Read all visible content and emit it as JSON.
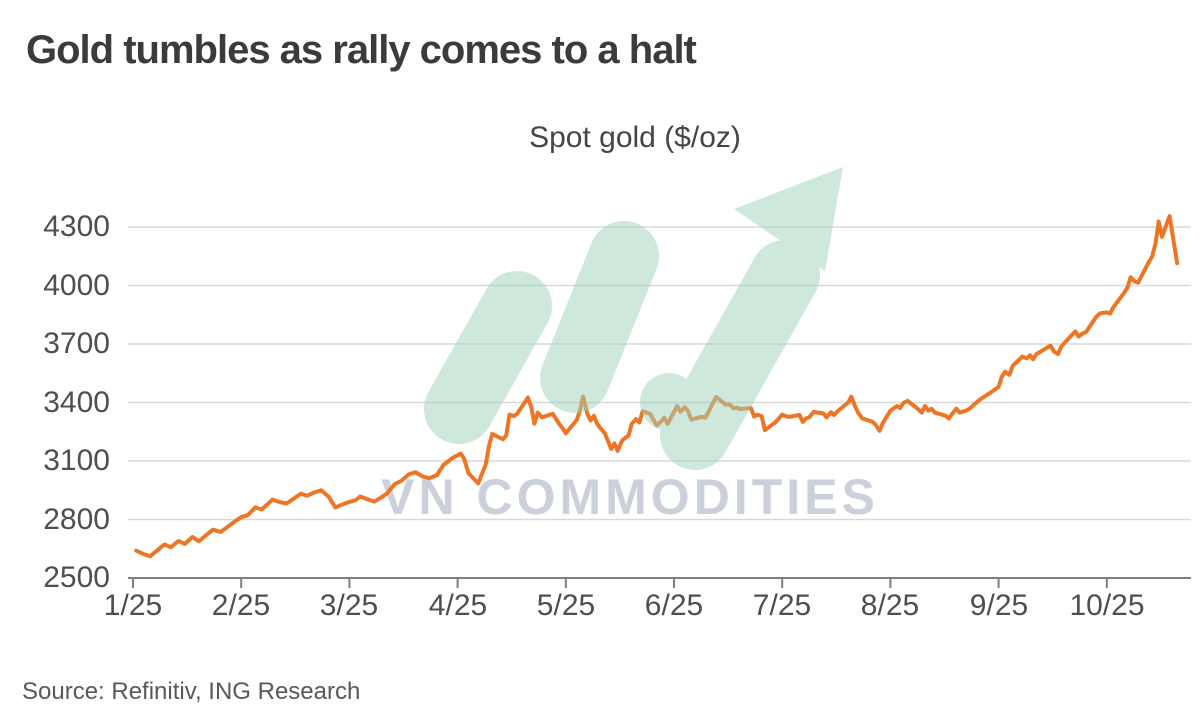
{
  "header": {
    "title": "Gold tumbles as rally comes to a halt"
  },
  "watermark": {
    "text": "VN COMMODITIES",
    "arrow_color": "#9fd4ba"
  },
  "footer": {
    "source": "Source: Refinitiv, ING Research"
  },
  "colors": {
    "line": "#ee7524",
    "grid": "#d9d9d9",
    "axis": "#7f7f7f",
    "axis_text": "#4f4f4f"
  },
  "chart_data": {
    "type": "line",
    "title": "Spot gold ($/oz)",
    "xlabel": "",
    "ylabel": "",
    "x_tick_labels": [
      "1/25",
      "2/25",
      "3/25",
      "4/25",
      "5/25",
      "6/25",
      "7/25",
      "8/25",
      "9/25",
      "10/25"
    ],
    "y_ticks": [
      2500,
      2800,
      3100,
      3400,
      3700,
      4000,
      4300
    ],
    "ylim": [
      2500,
      4460
    ],
    "xlim_months": [
      0,
      9.78
    ],
    "grid": "horizontal",
    "legend": "none",
    "series": [
      {
        "name": "Spot gold ($/oz)",
        "color": "#ee7524",
        "points": [
          [
            0.03,
            2640
          ],
          [
            0.1,
            2622
          ],
          [
            0.16,
            2612
          ],
          [
            0.22,
            2640
          ],
          [
            0.29,
            2672
          ],
          [
            0.35,
            2658
          ],
          [
            0.42,
            2690
          ],
          [
            0.48,
            2675
          ],
          [
            0.55,
            2710
          ],
          [
            0.61,
            2688
          ],
          [
            0.68,
            2722
          ],
          [
            0.74,
            2748
          ],
          [
            0.81,
            2736
          ],
          [
            0.87,
            2760
          ],
          [
            0.94,
            2790
          ],
          [
            1.0,
            2812
          ],
          [
            1.06,
            2822
          ],
          [
            1.13,
            2862
          ],
          [
            1.19,
            2852
          ],
          [
            1.29,
            2902
          ],
          [
            1.35,
            2890
          ],
          [
            1.42,
            2882
          ],
          [
            1.55,
            2932
          ],
          [
            1.61,
            2922
          ],
          [
            1.68,
            2940
          ],
          [
            1.74,
            2950
          ],
          [
            1.81,
            2916
          ],
          [
            1.87,
            2862
          ],
          [
            1.94,
            2878
          ],
          [
            2.0,
            2890
          ],
          [
            2.06,
            2900
          ],
          [
            2.1,
            2918
          ],
          [
            2.16,
            2905
          ],
          [
            2.23,
            2892
          ],
          [
            2.29,
            2912
          ],
          [
            2.35,
            2935
          ],
          [
            2.42,
            2982
          ],
          [
            2.48,
            2998
          ],
          [
            2.55,
            3032
          ],
          [
            2.61,
            3042
          ],
          [
            2.68,
            3020
          ],
          [
            2.74,
            3012
          ],
          [
            2.81,
            3028
          ],
          [
            2.87,
            3080
          ],
          [
            2.97,
            3122
          ],
          [
            3.0,
            3128
          ],
          [
            3.03,
            3138
          ],
          [
            3.06,
            3112
          ],
          [
            3.1,
            3038
          ],
          [
            3.19,
            2985
          ],
          [
            3.26,
            3082
          ],
          [
            3.29,
            3178
          ],
          [
            3.32,
            3238
          ],
          [
            3.42,
            3212
          ],
          [
            3.45,
            3232
          ],
          [
            3.48,
            3338
          ],
          [
            3.52,
            3330
          ],
          [
            3.55,
            3342
          ],
          [
            3.65,
            3425
          ],
          [
            3.68,
            3378
          ],
          [
            3.71,
            3292
          ],
          [
            3.74,
            3348
          ],
          [
            3.78,
            3324
          ],
          [
            3.88,
            3342
          ],
          [
            3.94,
            3290
          ],
          [
            3.97,
            3268
          ],
          [
            4.0,
            3242
          ],
          [
            4.03,
            3262
          ],
          [
            4.1,
            3310
          ],
          [
            4.13,
            3358
          ],
          [
            4.16,
            3430
          ],
          [
            4.2,
            3340
          ],
          [
            4.23,
            3308
          ],
          [
            4.26,
            3332
          ],
          [
            4.29,
            3290
          ],
          [
            4.32,
            3268
          ],
          [
            4.36,
            3242
          ],
          [
            4.42,
            3162
          ],
          [
            4.45,
            3190
          ],
          [
            4.48,
            3152
          ],
          [
            4.52,
            3205
          ],
          [
            4.58,
            3232
          ],
          [
            4.61,
            3292
          ],
          [
            4.65,
            3315
          ],
          [
            4.68,
            3298
          ],
          [
            4.71,
            3355
          ],
          [
            4.78,
            3342
          ],
          [
            4.84,
            3282
          ],
          [
            4.88,
            3302
          ],
          [
            4.91,
            3322
          ],
          [
            4.94,
            3290
          ],
          [
            5.03,
            3382
          ],
          [
            5.06,
            3352
          ],
          [
            5.1,
            3376
          ],
          [
            5.13,
            3355
          ],
          [
            5.16,
            3312
          ],
          [
            5.25,
            3326
          ],
          [
            5.29,
            3322
          ],
          [
            5.32,
            3352
          ],
          [
            5.35,
            3388
          ],
          [
            5.39,
            3428
          ],
          [
            5.48,
            3388
          ],
          [
            5.51,
            3392
          ],
          [
            5.55,
            3370
          ],
          [
            5.58,
            3374
          ],
          [
            5.61,
            3366
          ],
          [
            5.71,
            3372
          ],
          [
            5.74,
            3328
          ],
          [
            5.77,
            3338
          ],
          [
            5.81,
            3330
          ],
          [
            5.84,
            3258
          ],
          [
            5.94,
            3300
          ],
          [
            6.0,
            3338
          ],
          [
            6.03,
            3330
          ],
          [
            6.06,
            3326
          ],
          [
            6.16,
            3336
          ],
          [
            6.19,
            3300
          ],
          [
            6.22,
            3318
          ],
          [
            6.25,
            3324
          ],
          [
            6.29,
            3352
          ],
          [
            6.38,
            3344
          ],
          [
            6.41,
            3324
          ],
          [
            6.45,
            3350
          ],
          [
            6.48,
            3336
          ],
          [
            6.51,
            3355
          ],
          [
            6.61,
            3400
          ],
          [
            6.64,
            3430
          ],
          [
            6.67,
            3385
          ],
          [
            6.7,
            3350
          ],
          [
            6.74,
            3318
          ],
          [
            6.83,
            3302
          ],
          [
            6.86,
            3288
          ],
          [
            6.9,
            3255
          ],
          [
            6.93,
            3295
          ],
          [
            7.0,
            3358
          ],
          [
            7.06,
            3382
          ],
          [
            7.09,
            3372
          ],
          [
            7.12,
            3398
          ],
          [
            7.16,
            3408
          ],
          [
            7.25,
            3368
          ],
          [
            7.29,
            3348
          ],
          [
            7.32,
            3382
          ],
          [
            7.35,
            3358
          ],
          [
            7.38,
            3368
          ],
          [
            7.41,
            3348
          ],
          [
            7.51,
            3332
          ],
          [
            7.54,
            3318
          ],
          [
            7.58,
            3348
          ],
          [
            7.61,
            3368
          ],
          [
            7.64,
            3348
          ],
          [
            7.7,
            3358
          ],
          [
            7.74,
            3372
          ],
          [
            7.77,
            3388
          ],
          [
            7.8,
            3402
          ],
          [
            7.84,
            3420
          ],
          [
            7.92,
            3448
          ],
          [
            8.0,
            3480
          ],
          [
            8.03,
            3532
          ],
          [
            8.06,
            3558
          ],
          [
            8.1,
            3542
          ],
          [
            8.13,
            3588
          ],
          [
            8.22,
            3636
          ],
          [
            8.26,
            3626
          ],
          [
            8.29,
            3642
          ],
          [
            8.32,
            3622
          ],
          [
            8.35,
            3648
          ],
          [
            8.45,
            3682
          ],
          [
            8.48,
            3692
          ],
          [
            8.51,
            3662
          ],
          [
            8.55,
            3648
          ],
          [
            8.58,
            3688
          ],
          [
            8.68,
            3748
          ],
          [
            8.71,
            3764
          ],
          [
            8.74,
            3738
          ],
          [
            8.77,
            3752
          ],
          [
            8.81,
            3762
          ],
          [
            8.9,
            3838
          ],
          [
            8.94,
            3858
          ],
          [
            9.0,
            3862
          ],
          [
            9.03,
            3856
          ],
          [
            9.06,
            3888
          ],
          [
            9.16,
            3962
          ],
          [
            9.19,
            3988
          ],
          [
            9.22,
            4042
          ],
          [
            9.26,
            4020
          ],
          [
            9.29,
            4015
          ],
          [
            9.38,
            4112
          ],
          [
            9.42,
            4150
          ],
          [
            9.45,
            4215
          ],
          [
            9.48,
            4328
          ],
          [
            9.51,
            4250
          ],
          [
            9.58,
            4356
          ],
          [
            9.65,
            4115
          ]
        ]
      }
    ]
  }
}
